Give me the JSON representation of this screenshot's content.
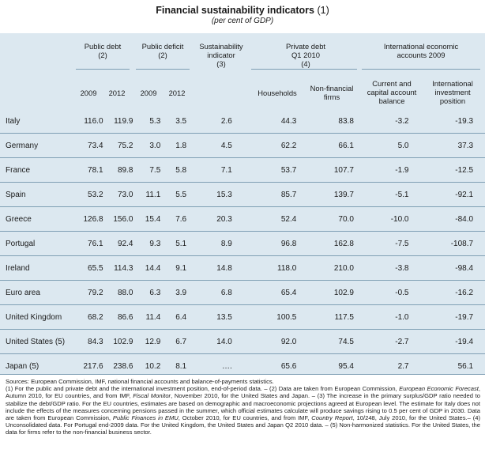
{
  "title": "Financial sustainability indicators",
  "title_note": "(1)",
  "subtitle": "(per cent of GDP)",
  "groups": {
    "public_debt": [
      "Public debt",
      "(2)"
    ],
    "public_deficit": [
      "Public deficit",
      "(2)"
    ],
    "sustainability": [
      "Sustainability",
      "indicator",
      "(3)"
    ],
    "private_debt": [
      "Private debt",
      "Q1 2010",
      "(4)"
    ],
    "international": [
      "International economic",
      "accounts  2009"
    ]
  },
  "subheaders": {
    "y2009a": "2009",
    "y2012a": "2012",
    "y2009b": "2009",
    "y2012b": "2012",
    "households": "Households",
    "nonfin": [
      "Non-financial",
      "firms"
    ],
    "current": [
      "Current and",
      "capital account",
      "balance"
    ],
    "iip": [
      "International",
      "investment",
      "position"
    ]
  },
  "rows": [
    {
      "country": "Italy",
      "v": [
        "116.0",
        "119.9",
        "5.3",
        "3.5",
        "2.6",
        "44.3",
        "83.8",
        "-3.2",
        "-19.3"
      ]
    },
    {
      "country": "Germany",
      "v": [
        "73.4",
        "75.2",
        "3.0",
        "1.8",
        "4.5",
        "62.2",
        "66.1",
        "5.0",
        "37.3"
      ]
    },
    {
      "country": "France",
      "v": [
        "78.1",
        "89.8",
        "7.5",
        "5.8",
        "7.1",
        "53.7",
        "107.7",
        "-1.9",
        "-12.5"
      ]
    },
    {
      "country": "Spain",
      "v": [
        "53.2",
        "73.0",
        "11.1",
        "5.5",
        "15.3",
        "85.7",
        "139.7",
        "-5.1",
        "-92.1"
      ]
    },
    {
      "country": "Greece",
      "v": [
        "126.8",
        "156.0",
        "15.4",
        "7.6",
        "20.3",
        "52.4",
        "70.0",
        "-10.0",
        "-84.0"
      ]
    },
    {
      "country": "Portugal",
      "v": [
        "76.1",
        "92.4",
        "9.3",
        "5.1",
        "8.9",
        "96.8",
        "162.8",
        "-7.5",
        "-108.7"
      ]
    },
    {
      "country": "Ireland",
      "v": [
        "65.5",
        "114.3",
        "14.4",
        "9.1",
        "14.8",
        "118.0",
        "210.0",
        "-3.8",
        "-98.4"
      ]
    },
    {
      "country": "Euro area",
      "v": [
        "79.2",
        "88.0",
        "6.3",
        "3.9",
        "6.8",
        "65.4",
        "102.9",
        "-0.5",
        "-16.2"
      ]
    },
    {
      "country": "United Kingdom",
      "v": [
        "68.2",
        "86.6",
        "11.4",
        "6.4",
        "13.5",
        "100.5",
        "117.5",
        "-1.0",
        "-19.7"
      ]
    },
    {
      "country": "United States (5)",
      "v": [
        "84.3",
        "102.9",
        "12.9",
        "6.7",
        "14.0",
        "92.0",
        "74.5",
        "-2.7",
        "-19.4"
      ]
    },
    {
      "country": "Japan (5)",
      "v": [
        "217.6",
        "238.6",
        "10.2",
        "8.1",
        "….",
        "65.6",
        "95.4",
        "2.7",
        "56.1"
      ]
    }
  ],
  "notes": {
    "sources": "Sources: European Commission, IMF, national financial accounts and balance-of-payments statistics.",
    "n1a": "(1) For the public and private debt and the international investment position, end-of-period data. – (2) Data are taken from European Commission, ",
    "n1_it1": "European Economic Forecast",
    "n1b": ", Autumn 2010, for EU countries, and from IMF, ",
    "n1_it2": "Fiscal Monitor",
    "n1c": ", November 2010, for the United States and Japan. – (3) The increase in the primary surplus/GDP ratio needed to stabilize the debt/GDP ratio. For the EU countries, estimates are based on demographic and macroeconomic projections agreed at European level. The estimate for Italy does not include the effects of the measures concerning pensions passed in the summer, which official estimates calculate will produce savings rising to 0.5 per cent of GDP in 2030. Data are taken from European Commission, ",
    "n1_it3": "Public Finances in EMU",
    "n1d": ", October 2010, for EU countries, and from IMF, ",
    "n1_it4": "Country Report",
    "n1e": ", 10/248, July 2010, for the United States.– (4) Unconsolidated data. For Portugal end-2009 data. For the United Kingdom, the United States and Japan Q2 2010 data. – (5) Non-harmonized statistics. For the United States, the data for firms refer to the non-financial business sector."
  }
}
